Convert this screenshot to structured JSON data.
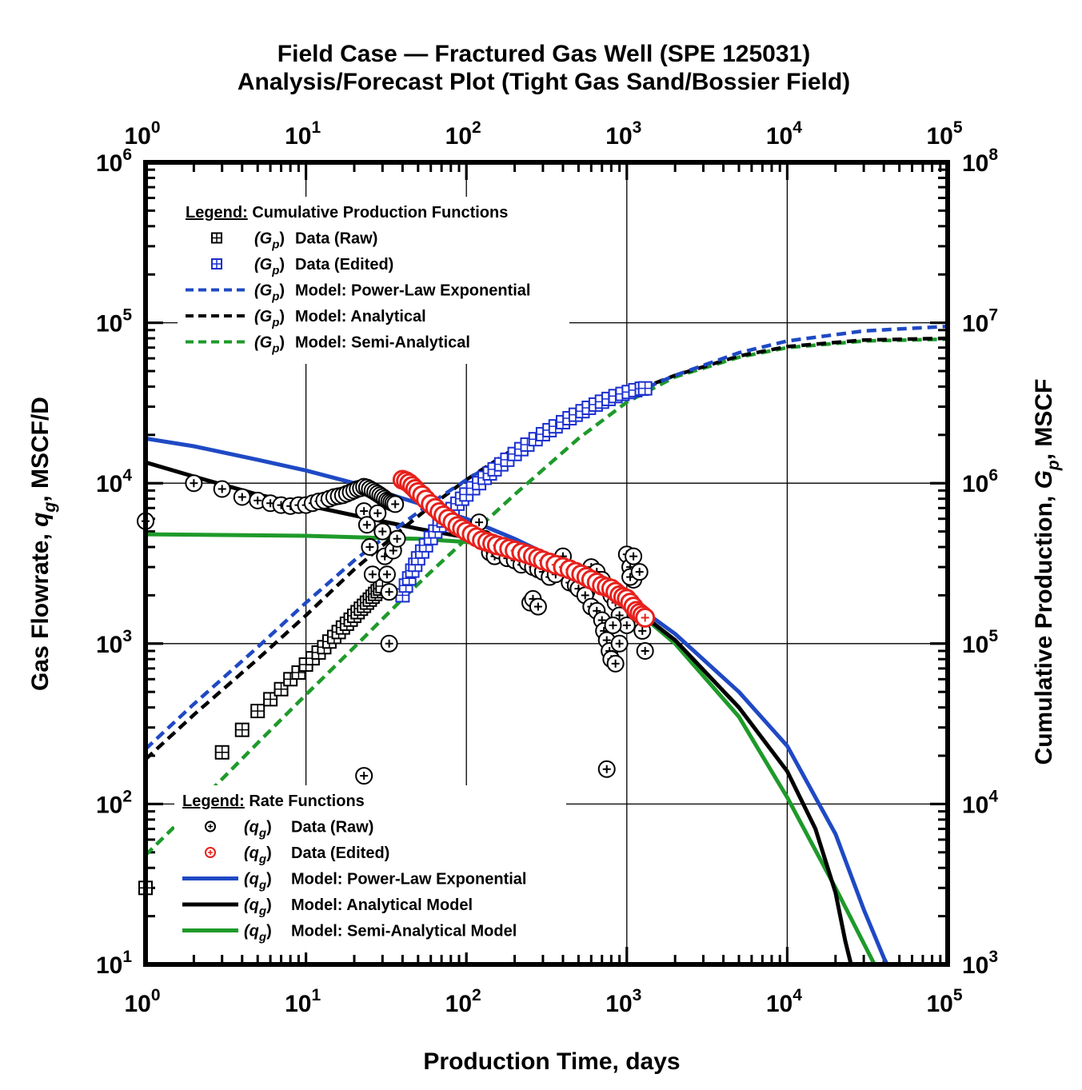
{
  "chart_data": {
    "type": "line",
    "title": "Field Case — Fractured Gas Well (SPE 125031)",
    "subtitle": "Analysis/Forecast Plot (Tight Gas Sand/Bossier Field)",
    "xlabel": "Production Time, days",
    "ylabel": "Gas Flowrate, q_g, MSCF/D",
    "y2label": "Cumulative Production, G_p, MSCF",
    "x_scale": "log",
    "y_scale": "log",
    "y2_scale": "log",
    "xlim": [
      1,
      100000
    ],
    "ylim": [
      10,
      1000000
    ],
    "y2lim": [
      1000,
      100000000
    ],
    "grid": true,
    "x_ticks": [
      {
        "base": "10",
        "exp": "0"
      },
      {
        "base": "10",
        "exp": "1"
      },
      {
        "base": "10",
        "exp": "2"
      },
      {
        "base": "10",
        "exp": "3"
      },
      {
        "base": "10",
        "exp": "4"
      },
      {
        "base": "10",
        "exp": "5"
      }
    ],
    "y_ticks": [
      {
        "base": "10",
        "exp": "1"
      },
      {
        "base": "10",
        "exp": "2"
      },
      {
        "base": "10",
        "exp": "3"
      },
      {
        "base": "10",
        "exp": "4"
      },
      {
        "base": "10",
        "exp": "5"
      },
      {
        "base": "10",
        "exp": "6"
      }
    ],
    "y2_ticks": [
      {
        "base": "10",
        "exp": "3"
      },
      {
        "base": "10",
        "exp": "4"
      },
      {
        "base": "10",
        "exp": "5"
      },
      {
        "base": "10",
        "exp": "6"
      },
      {
        "base": "10",
        "exp": "7"
      },
      {
        "base": "10",
        "exp": "8"
      }
    ],
    "cum_legend": {
      "heading": "Legend:",
      "heading_rest": " Cumulative Production Functions",
      "placement": "upper-left",
      "items": [
        {
          "symbol": "(G",
          "sub": "p",
          "close": ")",
          "label": "Data (Raw)",
          "kind": "box",
          "color": "#000000"
        },
        {
          "symbol": "(G",
          "sub": "p",
          "close": ")",
          "label": "Data (Edited)",
          "kind": "box",
          "color": "#1a2fd0"
        },
        {
          "symbol": "(G",
          "sub": "p",
          "close": ")",
          "label": "Model: Power-Law Exponential",
          "kind": "dash",
          "color": "#1f49c4"
        },
        {
          "symbol": "(G",
          "sub": "p",
          "close": ")",
          "label": "Model: Analytical",
          "kind": "dash",
          "color": "#000000"
        },
        {
          "symbol": "(G",
          "sub": "p",
          "close": ")",
          "label": "Model: Semi-Analytical",
          "kind": "dash",
          "color": "#1e9a2a"
        }
      ]
    },
    "rate_legend": {
      "heading": "Legend:",
      "heading_rest": " Rate Functions",
      "placement": "lower-left",
      "items": [
        {
          "symbol": "(q",
          "sub": "g",
          "close": ")",
          "label": "Data (Raw)",
          "kind": "circle",
          "color": "#000000"
        },
        {
          "symbol": "(q",
          "sub": "g",
          "close": ")",
          "label": "Data (Edited)",
          "kind": "circle",
          "color": "#e8201c"
        },
        {
          "symbol": "(q",
          "sub": "g",
          "close": ")",
          "label": "Model: Power-Law Exponential",
          "kind": "solid",
          "color": "#1f49c4"
        },
        {
          "symbol": "(q",
          "sub": "g",
          "close": ")",
          "label": "Model: Analytical Model",
          "kind": "solid",
          "color": "#000000"
        },
        {
          "symbol": "(q",
          "sub": "g",
          "close": ")",
          "label": "Model: Semi-Analytical Model",
          "kind": "solid",
          "color": "#1e9a2a"
        }
      ]
    },
    "series": [
      {
        "name": "(q_g) Model: Power-Law Exponential",
        "axis": "left",
        "style": "solid",
        "color": "#1f49c4",
        "x": [
          1,
          2,
          5,
          10,
          20,
          50,
          100,
          200,
          500,
          1000,
          2000,
          5000,
          10000,
          20000,
          30000,
          40000,
          42000
        ],
        "y": [
          19000,
          17000,
          14000,
          12000,
          10000,
          7500,
          6000,
          4500,
          2900,
          1900,
          1150,
          500,
          230,
          65,
          22,
          11,
          10
        ]
      },
      {
        "name": "(q_g) Model: Analytical Model",
        "axis": "left",
        "style": "solid",
        "color": "#000000",
        "x": [
          1,
          2,
          5,
          10,
          20,
          50,
          100,
          200,
          500,
          1000,
          2000,
          5000,
          10000,
          15000,
          20000,
          23000,
          25000
        ],
        "y": [
          13500,
          11000,
          8500,
          7300,
          6300,
          5200,
          4600,
          4000,
          2900,
          1800,
          1050,
          400,
          160,
          70,
          28,
          14,
          10
        ]
      },
      {
        "name": "(q_g) Model: Semi-Analytical Model",
        "axis": "left",
        "style": "solid",
        "color": "#1e9a2a",
        "x": [
          1,
          10,
          30,
          50,
          100,
          200,
          500,
          1000,
          2000,
          5000,
          10000,
          20000,
          35000
        ],
        "y": [
          4800,
          4700,
          4550,
          4500,
          4300,
          3900,
          2900,
          1800,
          1000,
          350,
          110,
          30,
          10
        ]
      },
      {
        "name": "(G_p) Model: Power-Law Exponential",
        "axis": "right",
        "style": "dash",
        "color": "#1f49c4",
        "x": [
          1,
          2,
          5,
          10,
          20,
          40,
          60,
          100,
          200,
          500,
          1000,
          2000,
          5000,
          10000,
          30000,
          100000
        ],
        "y": [
          22000,
          42000,
          95000,
          180000,
          330000,
          560000,
          750000,
          1050000,
          1600000,
          2600000,
          3500000,
          4700000,
          6500000,
          7700000,
          8900000,
          9500000
        ]
      },
      {
        "name": "(G_p) Model: Analytical",
        "axis": "right",
        "style": "dash",
        "color": "#000000",
        "x": [
          1,
          2,
          5,
          10,
          20,
          40,
          60,
          100,
          200,
          500,
          1000,
          2000,
          5000,
          10000,
          30000,
          100000
        ],
        "y": [
          19000,
          36000,
          80000,
          150000,
          290000,
          520000,
          720000,
          1050000,
          1650000,
          2700000,
          3600000,
          4700000,
          6200000,
          7100000,
          7800000,
          8000000
        ]
      },
      {
        "name": "(G_p) Model: Semi-Analytical",
        "axis": "right",
        "style": "dash",
        "color": "#1e9a2a",
        "x": [
          1,
          2,
          5,
          10,
          20,
          40,
          60,
          100,
          200,
          500,
          1000,
          2000,
          5000,
          10000,
          30000,
          100000
        ],
        "y": [
          4800,
          9500,
          24000,
          48000,
          95000,
          190000,
          280000,
          450000,
          850000,
          1900000,
          3200000,
          4600000,
          6100000,
          7000000,
          7700000,
          7900000
        ]
      },
      {
        "name": "(G_p) Data (Raw)",
        "axis": "right",
        "style": "box",
        "color": "#000000",
        "x": [
          1,
          3,
          4,
          5,
          6,
          7,
          8,
          9,
          10,
          11,
          12,
          13,
          14,
          15,
          16,
          17,
          18,
          19,
          20,
          21,
          22,
          23,
          24,
          25,
          26,
          27,
          28,
          29,
          30
        ],
        "y": [
          3000,
          21000,
          29000,
          38000,
          45000,
          52000,
          60000,
          66000,
          74000,
          81000,
          88000,
          95000,
          103000,
          110000,
          118000,
          126000,
          133000,
          141000,
          149000,
          157000,
          165000,
          172000,
          180000,
          188000,
          196000,
          204000,
          212000,
          220000,
          228000
        ]
      },
      {
        "name": "(G_p) Data (Edited)",
        "axis": "right",
        "style": "box",
        "color": "#1a2fd0",
        "x": [
          40,
          42,
          44,
          46,
          48,
          50,
          53,
          56,
          60,
          64,
          68,
          72,
          77,
          82,
          88,
          94,
          100,
          110,
          120,
          130,
          140,
          150,
          165,
          180,
          200,
          220,
          240,
          270,
          300,
          330,
          360,
          400,
          440,
          480,
          530,
          580,
          640,
          700,
          770,
          850,
          940,
          1030,
          1130,
          1240,
          1300
        ],
        "y": [
          200000,
          230000,
          255000,
          285000,
          310000,
          340000,
          375000,
          410000,
          455000,
          500000,
          545000,
          585000,
          640000,
          690000,
          745000,
          800000,
          850000,
          930000,
          1000000,
          1080000,
          1150000,
          1220000,
          1310000,
          1400000,
          1520000,
          1630000,
          1740000,
          1880000,
          2020000,
          2140000,
          2260000,
          2400000,
          2540000,
          2670000,
          2810000,
          2950000,
          3090000,
          3220000,
          3350000,
          3490000,
          3600000,
          3700000,
          3800000,
          3880000,
          3900000
        ]
      },
      {
        "name": "(q_g) Data (Raw)",
        "axis": "left",
        "style": "circle",
        "color": "#000000",
        "x": [
          1,
          2,
          3,
          4,
          5,
          6,
          7,
          8,
          9,
          10,
          11,
          12,
          13,
          14,
          15,
          16,
          17,
          18,
          19,
          20,
          21,
          22,
          23,
          24,
          25,
          26,
          27,
          28,
          29,
          30,
          31,
          32,
          33,
          34,
          35,
          36,
          23,
          24,
          25,
          26,
          28,
          30,
          31,
          32,
          33,
          35,
          37,
          23,
          33,
          120,
          130,
          140,
          150,
          160,
          180,
          200,
          220,
          240,
          260,
          280,
          300,
          330,
          360,
          400,
          440,
          480,
          520,
          560,
          600,
          650,
          700,
          750,
          800,
          850,
          900,
          1000,
          1050,
          1100,
          250,
          260,
          280,
          500,
          550,
          600,
          650,
          700,
          720,
          750,
          780,
          800,
          850,
          900,
          1000,
          1050,
          1100,
          1200,
          1250,
          1300,
          750,
          820
        ],
        "y": [
          5800,
          10000,
          9200,
          8200,
          7800,
          7500,
          7300,
          7200,
          7300,
          7300,
          7500,
          7700,
          7800,
          8000,
          8200,
          8300,
          8400,
          8600,
          8800,
          9000,
          9200,
          9300,
          9500,
          9400,
          9200,
          9000,
          8800,
          8600,
          8400,
          8200,
          8000,
          7800,
          7700,
          7600,
          7500,
          7400,
          6700,
          5500,
          4000,
          2700,
          6500,
          5000,
          3500,
          2700,
          2100,
          3800,
          4500,
          150,
          1000,
          5700,
          4500,
          3700,
          3500,
          3800,
          3400,
          3300,
          3100,
          3200,
          3000,
          2900,
          2800,
          2600,
          2700,
          3500,
          2400,
          2300,
          2200,
          2100,
          3000,
          2800,
          2500,
          2200,
          2000,
          1800,
          1500,
          3600,
          3000,
          2500,
          1800,
          1900,
          1700,
          2200,
          2000,
          1700,
          1600,
          1400,
          1200,
          1050,
          900,
          800,
          750,
          1000,
          1300,
          2600,
          3500,
          2800,
          1200,
          900,
          165,
          1300
        ]
      },
      {
        "name": "(q_g) Data (Edited)",
        "axis": "left",
        "style": "circle",
        "color": "#e8201c",
        "x": [
          40,
          42,
          44,
          46,
          48,
          50,
          53,
          56,
          60,
          64,
          68,
          72,
          77,
          82,
          88,
          94,
          100,
          108,
          116,
          125,
          135,
          145,
          155,
          170,
          185,
          200,
          220,
          240,
          260,
          280,
          300,
          330,
          360,
          400,
          440,
          480,
          520,
          560,
          600,
          650,
          700,
          750,
          800,
          850,
          900,
          950,
          1000,
          1050,
          1100,
          1150,
          1200,
          1250,
          1300
        ],
        "y": [
          10500,
          10300,
          10000,
          9600,
          9200,
          8800,
          8400,
          7900,
          7400,
          7000,
          6600,
          6300,
          6000,
          5700,
          5400,
          5200,
          5000,
          4800,
          4600,
          4400,
          4300,
          4200,
          4100,
          4000,
          3900,
          3800,
          3700,
          3600,
          3500,
          3400,
          3300,
          3200,
          3100,
          3000,
          2900,
          2800,
          2700,
          2600,
          2500,
          2400,
          2300,
          2250,
          2200,
          2100,
          2000,
          1950,
          1900,
          1800,
          1700,
          1600,
          1550,
          1500,
          1450
        ]
      }
    ]
  }
}
